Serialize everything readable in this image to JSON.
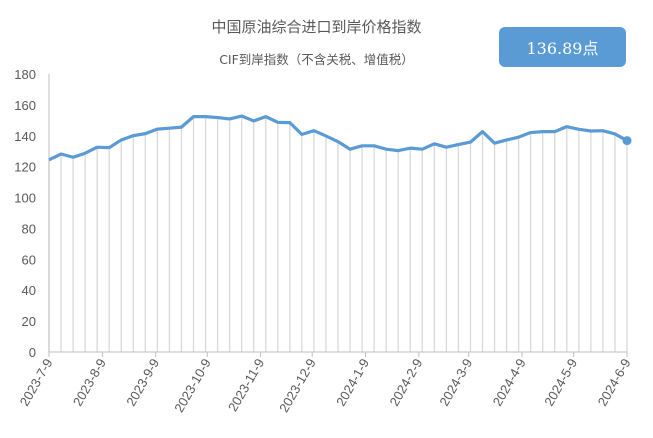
{
  "chart_data": {
    "type": "line",
    "title": "中国原油综合进口到岸价格指数",
    "subtitle": "CIF到岸指数（不含关税、增值税）",
    "callout": "136.89点",
    "ylim": [
      0,
      180
    ],
    "yticks": [
      0,
      20,
      40,
      60,
      80,
      100,
      120,
      140,
      160,
      180
    ],
    "xticks": [
      "2023-7-9",
      "2023-8-9",
      "2023-9-9",
      "2023-10-9",
      "2023-11-9",
      "2023-12-9",
      "2024-1-9",
      "2024-2-9",
      "2024-3-9",
      "2024-4-9",
      "2024-5-9",
      "2024-6-9"
    ],
    "x_start": "2023-7-9",
    "x_interval": "weekly",
    "values": [
      124.4,
      128.2,
      126.1,
      128.7,
      132.6,
      132.3,
      137.3,
      140.1,
      141.4,
      144.3,
      144.9,
      145.6,
      152.4,
      152.4,
      151.8,
      150.9,
      152.8,
      149.6,
      152.4,
      148.7,
      148.5,
      140.9,
      143.3,
      139.9,
      136.2,
      131.3,
      133.5,
      133.5,
      131.3,
      130.4,
      132.0,
      131.3,
      134.8,
      132.6,
      134.3,
      135.9,
      142.7,
      135.2,
      137.3,
      139.1,
      142.1,
      142.7,
      142.7,
      145.9,
      144.2,
      143.1,
      143.3,
      141.2,
      136.89
    ],
    "grid": "vertical drop lines",
    "colors": {
      "line": "#5b9bd5",
      "droplines": "#d9d9d9",
      "callout_bg": "#5b9bd5"
    }
  }
}
